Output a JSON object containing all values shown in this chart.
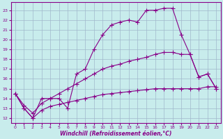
{
  "background_color": "#c8ecec",
  "line_color": "#880088",
  "grid_color": "#a0b8cc",
  "xlabel": "Windchill (Refroidissement éolien,°C)",
  "ylim": [
    11.5,
    23.8
  ],
  "xlim": [
    -0.5,
    23.5
  ],
  "yticks": [
    12,
    13,
    14,
    15,
    16,
    17,
    18,
    19,
    20,
    21,
    22,
    23
  ],
  "xticks": [
    0,
    1,
    2,
    3,
    4,
    5,
    6,
    7,
    8,
    9,
    10,
    11,
    12,
    13,
    14,
    15,
    16,
    17,
    18,
    19,
    20,
    21,
    22,
    23
  ],
  "line1_x": [
    0,
    1,
    2,
    3,
    4,
    5,
    6,
    7,
    8,
    9,
    10,
    11,
    12,
    13,
    14,
    15,
    16,
    17,
    18,
    19,
    20,
    21,
    22,
    23
  ],
  "line1_y": [
    14.5,
    13.0,
    12.0,
    14.0,
    14.0,
    14.0,
    13.0,
    16.5,
    17.0,
    19.0,
    20.5,
    21.5,
    21.8,
    22.0,
    21.8,
    23.0,
    23.0,
    23.2,
    23.2,
    20.5,
    18.5,
    16.2,
    16.5,
    15.0
  ],
  "line2_x": [
    0,
    1,
    2,
    3,
    4,
    5,
    6,
    7,
    8,
    9,
    10,
    11,
    12,
    13,
    14,
    15,
    16,
    17,
    18,
    19,
    20,
    21,
    22,
    23
  ],
  "line2_y": [
    14.5,
    13.3,
    12.5,
    13.5,
    14.0,
    14.5,
    15.0,
    15.5,
    16.0,
    16.5,
    17.0,
    17.3,
    17.5,
    17.8,
    18.0,
    18.2,
    18.5,
    18.7,
    18.7,
    18.5,
    18.5,
    16.2,
    16.5,
    15.0
  ],
  "line3_x": [
    0,
    1,
    2,
    3,
    4,
    5,
    6,
    7,
    8,
    9,
    10,
    11,
    12,
    13,
    14,
    15,
    16,
    17,
    18,
    19,
    20,
    21,
    22,
    23
  ],
  "line3_y": [
    14.5,
    13.0,
    12.0,
    12.8,
    13.2,
    13.4,
    13.6,
    13.8,
    14.0,
    14.2,
    14.4,
    14.5,
    14.6,
    14.7,
    14.8,
    14.9,
    15.0,
    15.0,
    15.0,
    15.0,
    15.0,
    15.0,
    15.2,
    15.2
  ]
}
